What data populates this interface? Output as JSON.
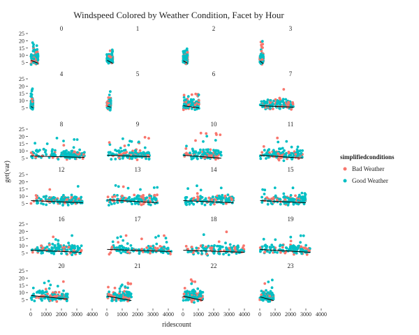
{
  "chart_data": {
    "type": "scatter",
    "title": "Windspeed Colored by Weather Condition, Facet by Hour",
    "xlabel": "ridescount",
    "ylabel": "get(var)",
    "xlim": [
      0,
      4000
    ],
    "ylim": [
      0,
      25
    ],
    "x_ticks": [
      0,
      1000,
      2000,
      3000,
      4000
    ],
    "x_tick_labels": [
      "0",
      "1000",
      "2000",
      "3000",
      "4000"
    ],
    "y_ticks": [
      5,
      10,
      15,
      20,
      25
    ],
    "y_tick_labels": [
      "5",
      "10",
      "15",
      "20",
      "25"
    ],
    "facet_by": "hour",
    "grid": false,
    "legend": {
      "title": "simplifiedconditions",
      "position": "right",
      "entries": [
        {
          "label": "Bad Weather",
          "color": "#F8766D"
        },
        {
          "label": "Good Weather",
          "color": "#00BFC4"
        }
      ]
    },
    "trend_color": "#000000",
    "facets": [
      {
        "hour": "0",
        "xmax": 480,
        "ymax": 19,
        "trend": [
          [
            20,
            6.5
          ],
          [
            480,
            4.5
          ]
        ]
      },
      {
        "hour": "1",
        "xmax": 390,
        "ymax": 17,
        "trend": [
          [
            20,
            6.5
          ],
          [
            390,
            4.5
          ]
        ]
      },
      {
        "hour": "2",
        "xmax": 300,
        "ymax": 16,
        "trend": [
          [
            20,
            6.2
          ],
          [
            300,
            4.5
          ]
        ]
      },
      {
        "hour": "3",
        "xmax": 230,
        "ymax": 20,
        "trend": [
          [
            20,
            6.0
          ],
          [
            230,
            4.2
          ]
        ]
      },
      {
        "hour": "4",
        "xmax": 150,
        "ymax": 23,
        "trend": [
          [
            20,
            6.0
          ],
          [
            150,
            5.0
          ]
        ]
      },
      {
        "hour": "5",
        "xmax": 260,
        "ymax": 17,
        "trend": [
          [
            20,
            6.3
          ],
          [
            260,
            5.5
          ]
        ]
      },
      {
        "hour": "6",
        "xmax": 1050,
        "ymax": 15,
        "trend": [
          [
            20,
            6.5
          ],
          [
            1050,
            5.0
          ]
        ]
      },
      {
        "hour": "7",
        "xmax": 2200,
        "ymax": 19,
        "trend": [
          [
            20,
            6.5
          ],
          [
            2200,
            5.5
          ]
        ]
      },
      {
        "hour": "8",
        "xmax": 3500,
        "ymax": 20,
        "trend": [
          [
            20,
            6.5
          ],
          [
            3500,
            5.5
          ]
        ]
      },
      {
        "hour": "9",
        "xmax": 2800,
        "ymax": 21,
        "trend": [
          [
            20,
            7.0
          ],
          [
            2800,
            6.0
          ]
        ]
      },
      {
        "hour": "10",
        "xmax": 2500,
        "ymax": 24,
        "trend": [
          [
            20,
            7.0
          ],
          [
            2500,
            5.0
          ]
        ]
      },
      {
        "hour": "11",
        "xmax": 2800,
        "ymax": 19,
        "trend": [
          [
            20,
            7.0
          ],
          [
            2800,
            5.0
          ]
        ]
      },
      {
        "hour": "12",
        "xmax": 3400,
        "ymax": 18,
        "trend": [
          [
            20,
            7.0
          ],
          [
            3400,
            5.5
          ]
        ]
      },
      {
        "hour": "13",
        "xmax": 3300,
        "ymax": 19,
        "trend": [
          [
            20,
            7.5
          ],
          [
            3300,
            5.5
          ]
        ]
      },
      {
        "hour": "14",
        "xmax": 3300,
        "ymax": 18,
        "trend": [
          [
            20,
            7.0
          ],
          [
            3300,
            5.5
          ]
        ]
      },
      {
        "hour": "15",
        "xmax": 3000,
        "ymax": 16,
        "trend": [
          [
            20,
            7.0
          ],
          [
            3000,
            5.5
          ]
        ]
      },
      {
        "hour": "16",
        "xmax": 3300,
        "ymax": 18,
        "trend": [
          [
            20,
            7.0
          ],
          [
            3300,
            5.5
          ]
        ]
      },
      {
        "hour": "17",
        "xmax": 4200,
        "ymax": 18,
        "trend": [
          [
            20,
            7.5
          ],
          [
            4200,
            6.0
          ]
        ]
      },
      {
        "hour": "18",
        "xmax": 4000,
        "ymax": 21,
        "trend": [
          [
            20,
            7.0
          ],
          [
            4000,
            5.5
          ]
        ]
      },
      {
        "hour": "19",
        "xmax": 3300,
        "ymax": 19,
        "trend": [
          [
            20,
            7.5
          ],
          [
            3300,
            5.5
          ]
        ]
      },
      {
        "hour": "20",
        "xmax": 2400,
        "ymax": 19,
        "trend": [
          [
            20,
            8.0
          ],
          [
            2400,
            5.5
          ]
        ]
      },
      {
        "hour": "21",
        "xmax": 1600,
        "ymax": 18,
        "trend": [
          [
            20,
            7.5
          ],
          [
            1600,
            4.5
          ]
        ]
      },
      {
        "hour": "22",
        "xmax": 1300,
        "ymax": 19,
        "trend": [
          [
            20,
            7.5
          ],
          [
            1300,
            4.5
          ]
        ]
      },
      {
        "hour": "23",
        "xmax": 900,
        "ymax": 20,
        "trend": [
          [
            20,
            7.0
          ],
          [
            900,
            4.5
          ]
        ]
      }
    ]
  }
}
